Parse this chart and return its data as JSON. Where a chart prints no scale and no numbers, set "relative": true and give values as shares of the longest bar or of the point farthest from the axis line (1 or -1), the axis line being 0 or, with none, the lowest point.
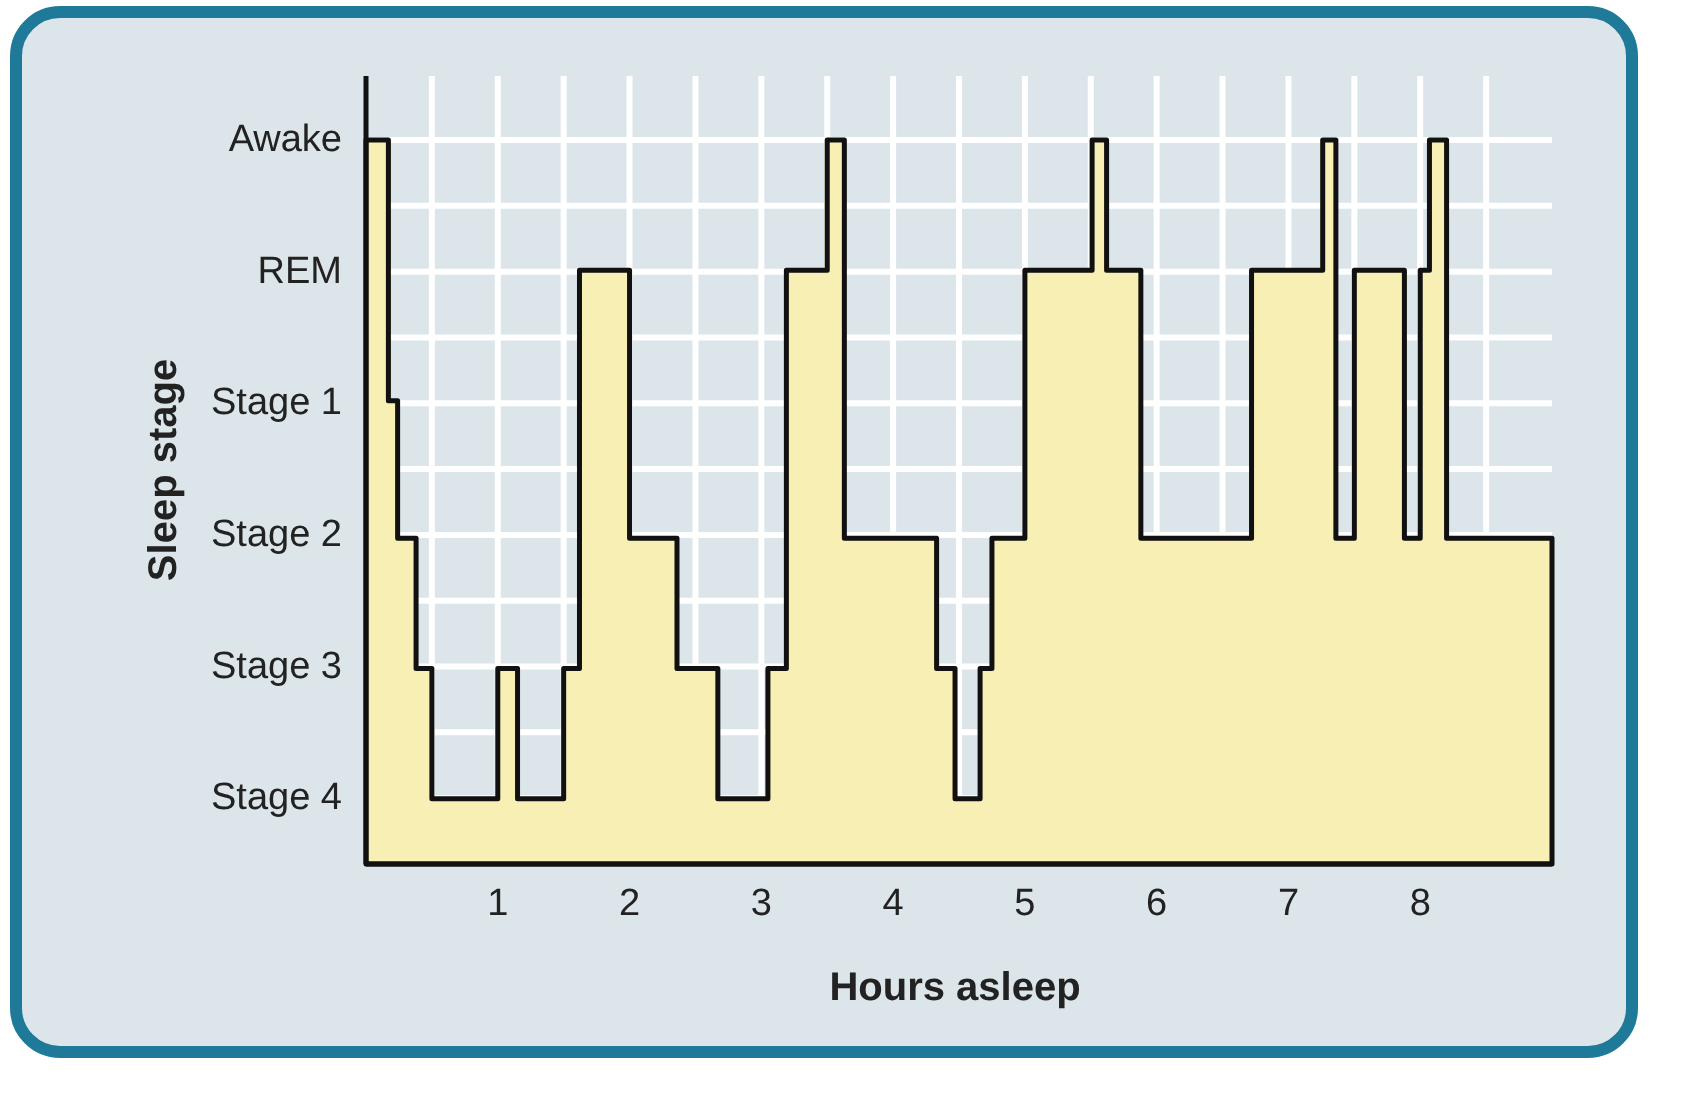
{
  "chart_data": {
    "type": "area",
    "xlabel": "Hours asleep",
    "ylabel": "Sleep stage",
    "relative": true,
    "x": [
      0,
      0.17,
      0.17,
      0.24,
      0.24,
      0.38,
      0.38,
      0.5,
      0.5,
      1.0,
      1.0,
      1.15,
      1.15,
      1.5,
      1.5,
      1.62,
      1.62,
      2.0,
      2.0,
      2.36,
      2.36,
      2.67,
      2.67,
      3.05,
      3.05,
      3.19,
      3.19,
      3.5,
      3.5,
      3.63,
      3.63,
      4.33,
      4.33,
      4.47,
      4.47,
      4.66,
      4.66,
      4.75,
      4.75,
      5.0,
      5.0,
      5.51,
      5.51,
      5.62,
      5.62,
      5.88,
      5.88,
      6.72,
      6.72,
      7.26,
      7.26,
      7.36,
      7.36,
      7.5,
      7.5,
      7.88,
      7.88,
      8.0,
      8.0,
      8.07,
      8.07,
      8.2,
      8.2,
      9
    ],
    "series": [
      {
        "color": "#f7efb4",
        "values": [
          1,
          1,
          0.64,
          0.64,
          0.45,
          0.45,
          0.27,
          0.27,
          0.09,
          0.09,
          0.27,
          0.27,
          0.09,
          0.09,
          0.27,
          0.27,
          0.82,
          0.82,
          0.45,
          0.45,
          0.27,
          0.27,
          0.09,
          0.09,
          0.27,
          0.27,
          0.82,
          0.82,
          1,
          1,
          0.45,
          0.45,
          0.27,
          0.27,
          0.09,
          0.09,
          0.27,
          0.27,
          0.45,
          0.45,
          0.82,
          0.82,
          1,
          1,
          0.82,
          0.82,
          0.45,
          0.45,
          0.82,
          0.82,
          1,
          1,
          0.45,
          0.45,
          0.82,
          0.82,
          0.45,
          0.45,
          0.82,
          0.82,
          1,
          1,
          0.45,
          0.45
        ]
      }
    ],
    "annotations": [
      "Awake",
      "REM",
      "Stage 1",
      "Stage 2",
      "Stage 3",
      "Stage 4"
    ],
    "xlim": [
      0,
      9
    ],
    "xticks": [
      {
        "value": 0.5,
        "label": null
      },
      1,
      {
        "value": 1.5,
        "label": null
      },
      2,
      {
        "value": 2.5,
        "label": null
      },
      3,
      {
        "value": 3.5,
        "label": null
      },
      4,
      {
        "value": 4.5,
        "label": null
      },
      5,
      {
        "value": 5.5,
        "label": null
      },
      6,
      {
        "value": 6.5,
        "label": null
      },
      7,
      {
        "value": 7.5,
        "label": null
      },
      8,
      {
        "value": 8.5,
        "label": null
      }
    ],
    "grid": true
  }
}
